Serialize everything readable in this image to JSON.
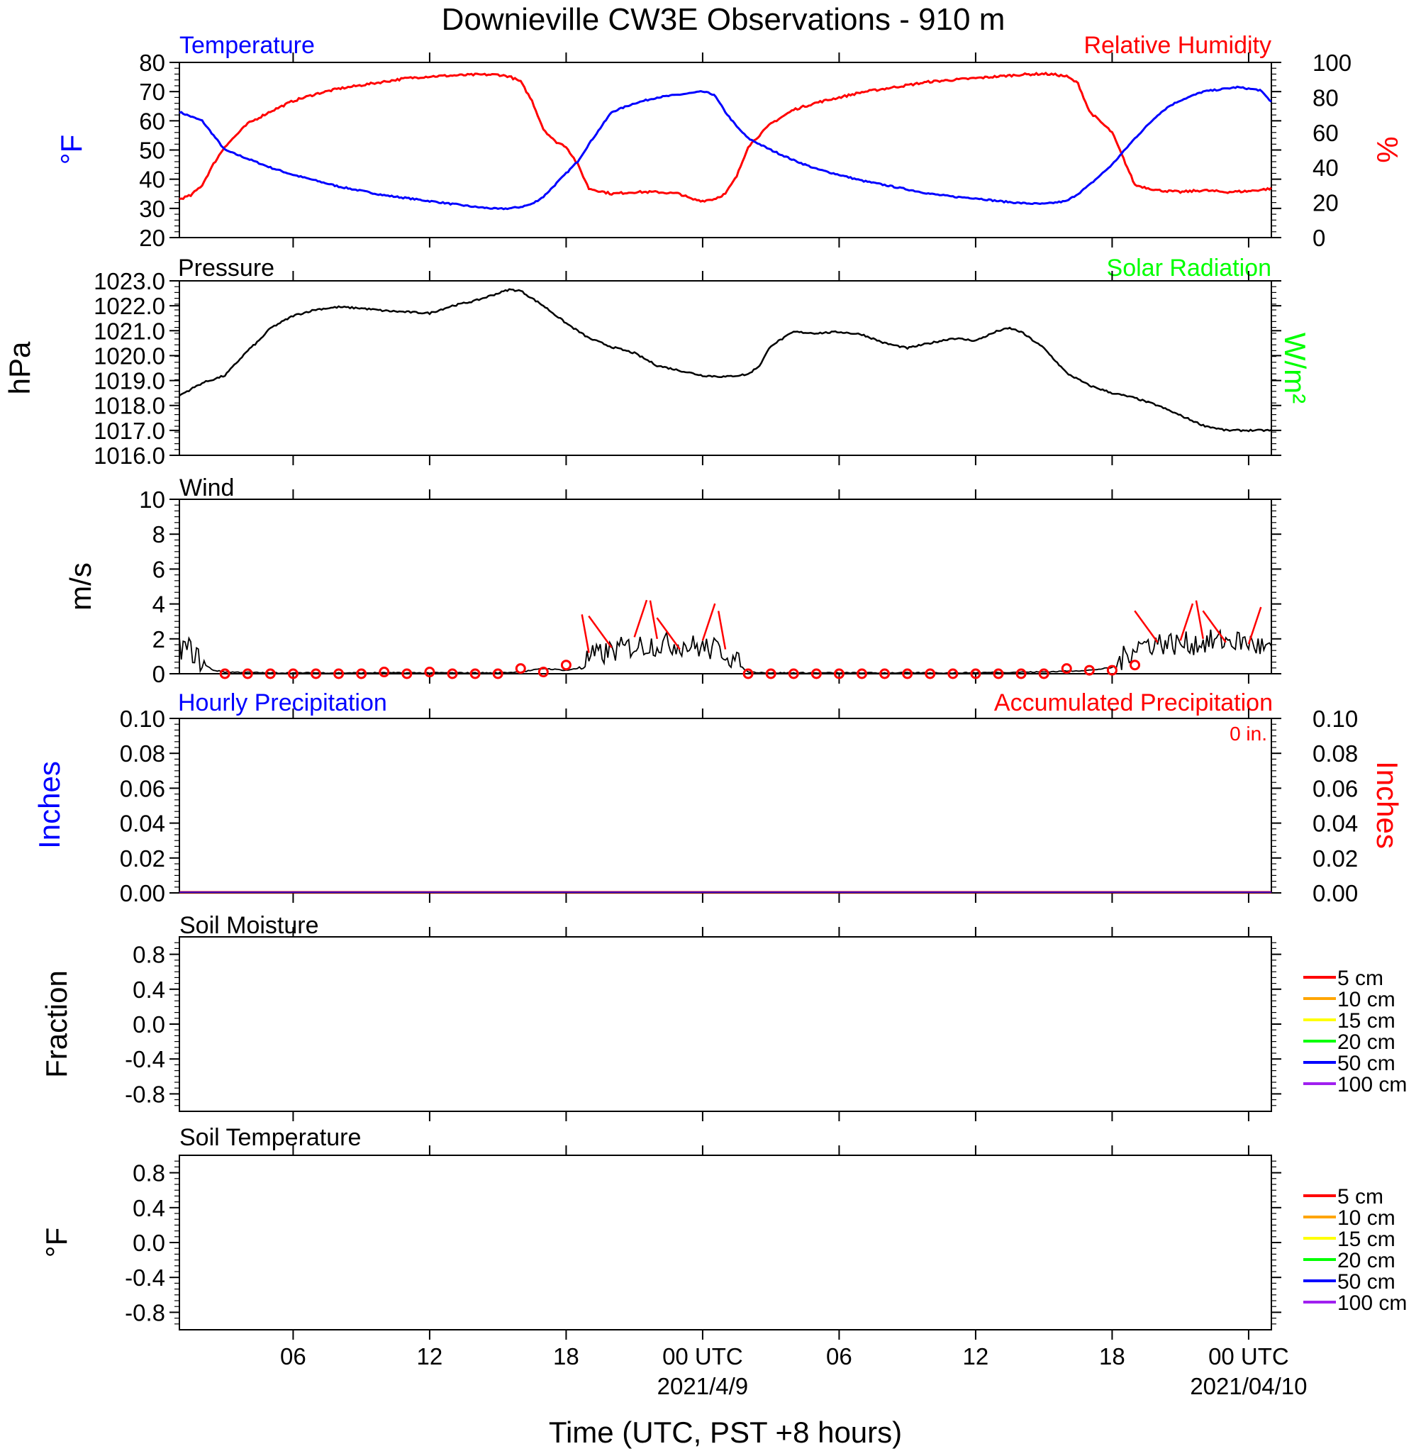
{
  "title": "Downieville CW3E Observations - 910 m",
  "xlabel": "Time (UTC, PST +8 hours)",
  "x_ticks": [
    {
      "label": "06"
    },
    {
      "label": "12"
    },
    {
      "label": "18"
    },
    {
      "label": "00 UTC",
      "sub": "2021/4/9"
    },
    {
      "label": "06"
    },
    {
      "label": "12"
    },
    {
      "label": "18"
    },
    {
      "label": "00 UTC",
      "sub": "2021/04/10"
    }
  ],
  "colors": {
    "temperature": "#0000ff",
    "humidity": "#ff0000",
    "pressure": "#000000",
    "solar": "#00ff00",
    "wind": "#000000",
    "wind_barb": "#ff0000",
    "precip_hourly": "#0000ff",
    "precip_accum": "#ff0000"
  },
  "panels": {
    "temp_rh": {
      "left_title": "Temperature",
      "right_title": "Relative Humidity",
      "left_unit": "°F",
      "right_unit": "%",
      "left_ticks": [
        "20",
        "30",
        "40",
        "50",
        "60",
        "70",
        "80"
      ],
      "right_ticks": [
        "0",
        "20",
        "40",
        "60",
        "80",
        "100"
      ]
    },
    "pressure": {
      "left_title": "Pressure",
      "right_title": "Solar Radiation",
      "left_unit": "hPa",
      "right_unit": "W/m²",
      "left_ticks": [
        "1016.0",
        "1017.0",
        "1018.0",
        "1019.0",
        "1020.0",
        "1021.0",
        "1022.0",
        "1023.0"
      ]
    },
    "wind": {
      "left_title": "Wind",
      "left_unit": "m/s",
      "left_ticks": [
        "0",
        "2",
        "4",
        "6",
        "8",
        "10"
      ]
    },
    "precip": {
      "left_title": "Hourly Precipitation",
      "right_title": "Accumulated Precipitation",
      "accum_label": "0 in.",
      "left_unit": "Inches",
      "right_unit": "Inches",
      "left_ticks": [
        "0.00",
        "0.02",
        "0.04",
        "0.06",
        "0.08",
        "0.10"
      ],
      "right_ticks": [
        "0.00",
        "0.02",
        "0.04",
        "0.06",
        "0.08",
        "0.10"
      ]
    },
    "soil_moisture": {
      "left_title": "Soil Moisture",
      "left_unit": "Fraction",
      "left_ticks": [
        "-0.8",
        "-0.4",
        "0.0",
        "0.4",
        "0.8"
      ],
      "legend": [
        {
          "label": "5 cm",
          "color": "#ff0000"
        },
        {
          "label": "10 cm",
          "color": "#ffa500"
        },
        {
          "label": "15 cm",
          "color": "#ffff00"
        },
        {
          "label": "20 cm",
          "color": "#00ff00"
        },
        {
          "label": "50 cm",
          "color": "#0000ff"
        },
        {
          "label": "100 cm",
          "color": "#a020f0"
        }
      ]
    },
    "soil_temperature": {
      "left_title": "Soil Temperature",
      "left_unit": "°F",
      "left_ticks": [
        "-0.8",
        "-0.4",
        "0.0",
        "0.4",
        "0.8"
      ],
      "legend": [
        {
          "label": "5 cm",
          "color": "#ff0000"
        },
        {
          "label": "10 cm",
          "color": "#ffa500"
        },
        {
          "label": "15 cm",
          "color": "#ffff00"
        },
        {
          "label": "20 cm",
          "color": "#00ff00"
        },
        {
          "label": "50 cm",
          "color": "#0000ff"
        },
        {
          "label": "100 cm",
          "color": "#a020f0"
        }
      ]
    }
  },
  "chart_data": [
    {
      "type": "line",
      "panel": "temp_rh",
      "x_unit": "hours since 2021-04-08 01 UTC",
      "xlim": [
        0,
        48
      ],
      "series": [
        {
          "name": "Temperature",
          "axis": "left",
          "ylim": [
            20,
            80
          ],
          "x": [
            0,
            1,
            1.5,
            2,
            3,
            4,
            5,
            6,
            7,
            8,
            9,
            10,
            11,
            12,
            13,
            14,
            14.5,
            15,
            15.5,
            16,
            16.5,
            17,
            17.5,
            18,
            19,
            20,
            21,
            21.5,
            22,
            22.5,
            23,
            23.5,
            24,
            24.5,
            25,
            26,
            27,
            28,
            29,
            30,
            31,
            32,
            33,
            34,
            35,
            36,
            37,
            38,
            38.5,
            39,
            39.5,
            40,
            41,
            42,
            43,
            43.5,
            44,
            44.5,
            45,
            45.5,
            46,
            46.5,
            47,
            47.5,
            48
          ],
          "y": [
            63,
            60,
            55,
            50,
            47,
            44,
            41.5,
            39.5,
            37.5,
            36,
            34.5,
            33.5,
            32.5,
            31.5,
            30.5,
            29.8,
            30,
            30.5,
            31.5,
            34,
            38,
            42,
            46,
            52,
            63,
            66,
            68,
            68.5,
            69,
            69.5,
            70,
            69,
            63,
            58,
            54,
            50,
            46.5,
            43.5,
            41.5,
            39.5,
            38,
            36.5,
            35,
            34,
            33.5,
            32.5,
            31.8,
            31.5,
            32,
            32.5,
            35,
            38,
            45,
            54,
            62,
            65,
            67,
            68.5,
            70,
            70.5,
            71,
            71.5,
            71,
            70.5,
            66.5
          ]
        },
        {
          "name": "Relative Humidity",
          "axis": "right",
          "ylim": [
            0,
            100
          ],
          "x": [
            0,
            0.5,
            1,
            1.5,
            2,
            3,
            4,
            5,
            6,
            7,
            8,
            9,
            10,
            11,
            12,
            13,
            14,
            14.5,
            15,
            15.5,
            16,
            16.5,
            17,
            17.5,
            18,
            19,
            20,
            21,
            22,
            22.5,
            23,
            23.5,
            24,
            24.5,
            25,
            26,
            27,
            28,
            29,
            30,
            31,
            32,
            33,
            34,
            35,
            36,
            37,
            38,
            38.5,
            39,
            39.5,
            40,
            41,
            42,
            43,
            44,
            45,
            46,
            47,
            48
          ],
          "y": [
            22,
            24,
            30,
            42,
            52,
            65,
            72,
            78,
            82,
            85,
            87,
            89,
            91,
            92,
            92.5,
            93,
            93,
            92,
            89,
            78,
            62,
            55,
            52,
            42,
            28,
            25,
            26,
            26,
            25,
            22,
            21,
            22,
            25,
            35,
            52,
            65,
            73,
            77,
            80,
            83,
            85,
            87,
            89,
            90,
            91,
            92,
            93,
            93.5,
            93,
            92,
            88,
            72,
            60,
            30,
            27,
            26,
            27,
            26,
            26.5,
            28
          ]
        }
      ]
    },
    {
      "type": "line",
      "panel": "pressure",
      "ylim": [
        1016,
        1023
      ],
      "series": [
        {
          "name": "Pressure",
          "x": [
            0,
            1,
            2,
            3,
            3.5,
            4,
            5,
            6,
            7,
            8,
            9,
            10,
            11,
            12,
            13,
            14,
            14.5,
            15,
            16,
            17,
            18,
            19,
            20,
            21,
            22,
            23,
            24,
            25,
            25.5,
            26,
            27,
            28,
            29,
            30,
            31,
            32,
            33,
            34,
            35,
            36,
            36.5,
            37,
            38,
            39,
            40,
            41,
            42,
            43,
            44,
            45,
            46,
            47,
            48
          ],
          "y": [
            1018.4,
            1018.9,
            1019.2,
            1020.2,
            1020.6,
            1021.1,
            1021.6,
            1021.85,
            1021.95,
            1021.9,
            1021.8,
            1021.75,
            1021.7,
            1022.0,
            1022.2,
            1022.5,
            1022.65,
            1022.6,
            1022.0,
            1021.3,
            1020.7,
            1020.35,
            1020.1,
            1019.6,
            1019.4,
            1019.2,
            1019.15,
            1019.25,
            1019.6,
            1020.4,
            1020.95,
            1020.9,
            1020.95,
            1020.85,
            1020.5,
            1020.3,
            1020.5,
            1020.7,
            1020.6,
            1021.0,
            1021.1,
            1020.95,
            1020.3,
            1019.3,
            1018.8,
            1018.5,
            1018.3,
            1018.0,
            1017.6,
            1017.2,
            1017.0,
            1017.0,
            1017.0
          ]
        }
      ]
    },
    {
      "type": "line",
      "panel": "wind",
      "ylim": [
        0,
        10
      ],
      "series": [
        {
          "name": "Wind speed",
          "x": [
            0,
            0.5,
            1,
            1.5,
            2,
            4,
            8,
            12,
            14,
            15,
            16,
            17,
            17.5,
            18,
            19,
            20,
            21,
            22,
            23,
            24,
            24.5,
            25,
            26,
            30,
            34,
            38,
            40,
            41,
            41.5,
            42,
            43,
            44,
            45,
            46,
            47,
            48
          ],
          "y": [
            1.5,
            1.4,
            0.6,
            0.2,
            0.1,
            0.05,
            0.05,
            0.05,
            0.05,
            0.1,
            0.3,
            0.2,
            0.3,
            0.9,
            1.3,
            1.6,
            1.7,
            1.7,
            1.5,
            1.3,
            0.6,
            0.1,
            0.05,
            0.05,
            0.05,
            0.1,
            0.2,
            0.35,
            0.9,
            1.6,
            1.8,
            1.7,
            1.8,
            1.9,
            1.8,
            1.3
          ]
        },
        {
          "name": "Wind barb stations",
          "x": [
            2,
            3,
            4,
            5,
            6,
            7,
            8,
            9,
            10,
            11,
            12,
            13,
            14,
            15,
            16,
            17,
            18,
            19,
            20,
            21,
            22,
            23,
            24,
            25,
            26,
            27,
            28,
            29,
            30,
            31,
            32,
            33,
            34,
            35,
            36,
            37,
            38,
            39,
            40,
            41,
            42,
            43,
            44,
            45,
            46,
            47
          ],
          "y": [
            0,
            0,
            0,
            0,
            0,
            0,
            0,
            0.1,
            0,
            0.1,
            0,
            0,
            0,
            0.3,
            0.1,
            0.5,
            1.2,
            1.5,
            2.1,
            2.0,
            1.4,
            1.9,
            1.4,
            0,
            0,
            0,
            0,
            0,
            0,
            0,
            0,
            0,
            0,
            0,
            0,
            0,
            0,
            0.3,
            0.2,
            0.2,
            0.5,
            1.8,
            1.9,
            2.0,
            1.8,
            1.7
          ]
        }
      ]
    },
    {
      "type": "line",
      "panel": "precip",
      "ylim": [
        0,
        0.1
      ],
      "series": [
        {
          "name": "Hourly Precipitation",
          "x": [
            0,
            48
          ],
          "y": [
            0,
            0
          ]
        },
        {
          "name": "Accumulated Precipitation",
          "x": [
            0,
            48
          ],
          "y": [
            0,
            0
          ]
        }
      ]
    }
  ]
}
